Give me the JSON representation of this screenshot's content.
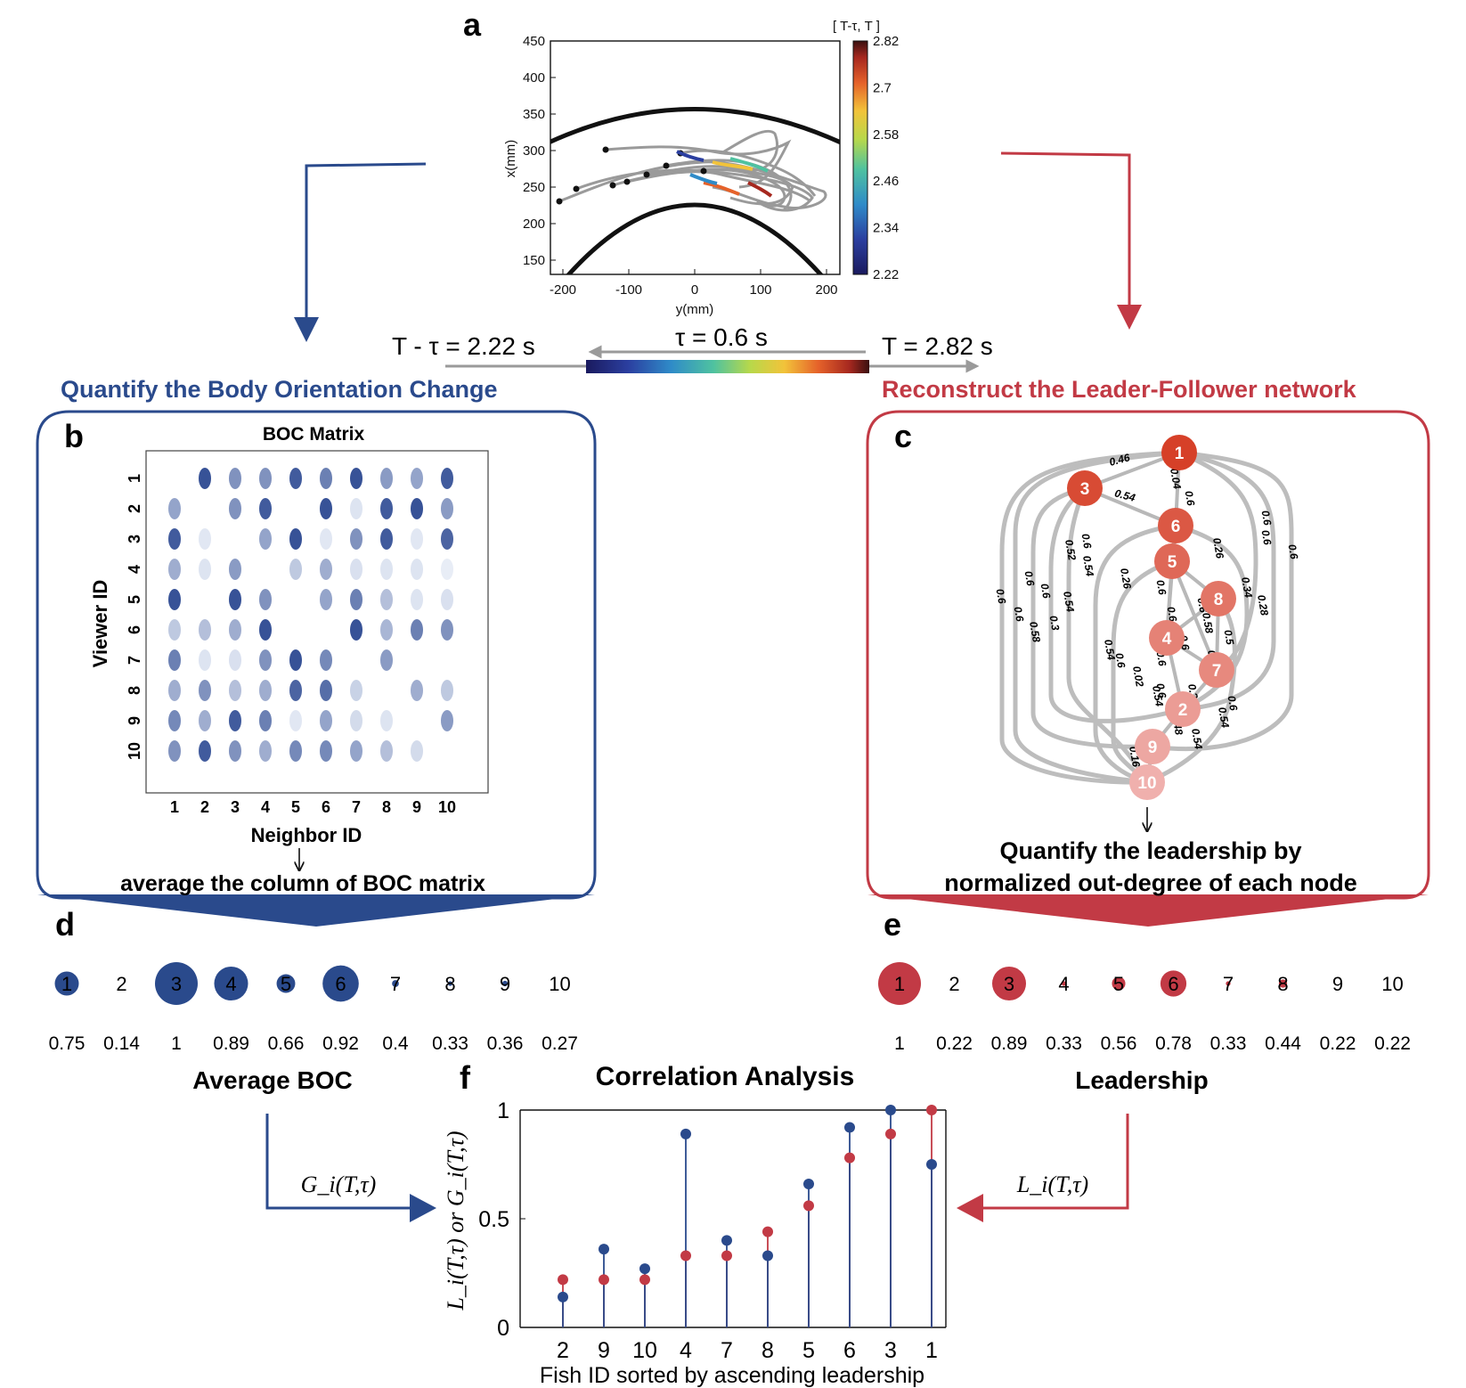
{
  "panels": {
    "a": "a",
    "b": "b",
    "c": "c",
    "d": "d",
    "e": "e",
    "f": "f"
  },
  "colors": {
    "blue": "#2a4a8c",
    "red": "#c23a45",
    "gray_track": "#9a9a9a",
    "node_dark": "#d9432b",
    "node_light": "#f0b0ad"
  },
  "panel_a": {
    "colorbar_title": "[ T-τ, T ]",
    "xlabel": "y(mm)",
    "ylabel": "x(mm)",
    "xticks": [
      "-200",
      "-100",
      "0",
      "100",
      "200"
    ],
    "yticks": [
      "450",
      "400",
      "350",
      "300",
      "250",
      "200",
      "150"
    ],
    "colorbar_ticks": [
      "2.82",
      "2.7",
      "2.58",
      "2.46",
      "2.34",
      "2.22"
    ]
  },
  "time_bar": {
    "left_label": "T - τ = 2.22 s",
    "center_label": "τ = 0.6 s",
    "right_label": "T = 2.82 s"
  },
  "headings": {
    "left": "Quantify the Body Orientation Change",
    "right": "Reconstruct the Leader-Follower network"
  },
  "panel_b": {
    "title": "BOC Matrix",
    "xlabel": "Neighbor ID",
    "ylabel": "Viewer ID",
    "ids": [
      "1",
      "2",
      "3",
      "4",
      "5",
      "6",
      "7",
      "8",
      "9",
      "10"
    ],
    "matrix": [
      [
        null,
        0.9,
        0.55,
        0.55,
        0.85,
        0.65,
        0.9,
        0.5,
        0.45,
        0.85
      ],
      [
        0.45,
        null,
        0.55,
        0.85,
        null,
        0.9,
        0.1,
        0.85,
        0.9,
        0.5
      ],
      [
        0.85,
        0.08,
        null,
        0.45,
        0.9,
        0.08,
        0.55,
        0.85,
        0.08,
        0.8
      ],
      [
        0.4,
        0.1,
        0.5,
        null,
        0.25,
        0.4,
        0.12,
        0.1,
        0.1,
        0.05
      ],
      [
        0.9,
        null,
        0.9,
        0.55,
        null,
        0.45,
        0.65,
        0.3,
        0.1,
        0.12
      ],
      [
        0.25,
        0.3,
        0.4,
        0.9,
        null,
        null,
        0.9,
        0.35,
        0.65,
        0.55
      ],
      [
        0.65,
        0.1,
        0.12,
        0.55,
        0.9,
        0.6,
        null,
        0.5,
        null,
        null
      ],
      [
        0.4,
        0.55,
        0.3,
        0.4,
        0.8,
        0.75,
        0.2,
        null,
        0.4,
        0.25
      ],
      [
        0.6,
        0.4,
        0.85,
        0.65,
        0.08,
        0.45,
        0.15,
        0.1,
        null,
        0.5
      ],
      [
        0.55,
        0.85,
        0.55,
        0.4,
        0.6,
        0.6,
        0.45,
        0.3,
        0.15,
        null
      ]
    ],
    "caption": "average the column of BOC matrix"
  },
  "panel_c": {
    "caption_line1": "Quantify the leadership by",
    "caption_line2": "normalized out-degree of each node",
    "nodes": [
      {
        "id": "1",
        "shade": 1.0
      },
      {
        "id": "3",
        "shade": 0.92
      },
      {
        "id": "6",
        "shade": 0.82
      },
      {
        "id": "5",
        "shade": 0.7
      },
      {
        "id": "8",
        "shade": 0.6
      },
      {
        "id": "4",
        "shade": 0.5
      },
      {
        "id": "7",
        "shade": 0.45
      },
      {
        "id": "2",
        "shade": 0.3
      },
      {
        "id": "9",
        "shade": 0.22
      },
      {
        "id": "10",
        "shade": 0.15
      }
    ],
    "edge_labels": [
      "0.46",
      "0.54",
      "0.04",
      "0.6",
      "0.6",
      "0.6",
      "0.6",
      "0.6",
      "0.52",
      "0.54",
      "0.26",
      "0.26",
      "0.34",
      "0.28",
      "0.6",
      "0.6",
      "0.54",
      "0.3",
      "0.58",
      "0.6",
      "0.6",
      "0.6",
      "0.54",
      "0.6",
      "0.02",
      "0.6",
      "0.24",
      "0.58",
      "0.5",
      "0.48",
      "0.54",
      "0.48",
      "0.6",
      "0.54",
      "0.16",
      "0.54",
      "0.6",
      "0.6",
      "0.6",
      "0.6"
    ]
  },
  "panel_d": {
    "title": "Average BOC",
    "ids": [
      "1",
      "2",
      "3",
      "4",
      "5",
      "6",
      "7",
      "8",
      "9",
      "10"
    ],
    "values": [
      0.75,
      0.14,
      1,
      0.89,
      0.66,
      0.92,
      0.4,
      0.33,
      0.36,
      0.27
    ],
    "value_labels": [
      "0.75",
      "0.14",
      "1",
      "0.89",
      "0.66",
      "0.92",
      "0.4",
      "0.33",
      "0.36",
      "0.27"
    ]
  },
  "panel_e": {
    "title": "Leadership",
    "ids": [
      "1",
      "2",
      "3",
      "4",
      "5",
      "6",
      "7",
      "8",
      "9",
      "10"
    ],
    "values": [
      1,
      0.22,
      0.89,
      0.33,
      0.56,
      0.78,
      0.33,
      0.44,
      0.22,
      0.22
    ],
    "value_labels": [
      "1",
      "0.22",
      "0.89",
      "0.33",
      "0.56",
      "0.78",
      "0.33",
      "0.44",
      "0.22",
      "0.22"
    ]
  },
  "arrows": {
    "left_label": "G_i(T,τ)",
    "right_label": "L_i(T,τ)"
  },
  "chart_data": {
    "type": "scatter",
    "title": "Correlation Analysis",
    "xlabel": "Fish ID sorted by ascending leadership",
    "ylabel": "L_i(T,τ) or G_i(T,τ)",
    "categories": [
      "2",
      "9",
      "10",
      "4",
      "7",
      "8",
      "5",
      "6",
      "3",
      "1"
    ],
    "yticks": [
      "0",
      "0.5",
      "1"
    ],
    "ylim": [
      0,
      1
    ],
    "series": [
      {
        "name": "L_i(T,τ)",
        "values": [
          0.22,
          0.22,
          0.22,
          0.33,
          0.33,
          0.44,
          0.56,
          0.78,
          0.89,
          1.0
        ]
      },
      {
        "name": "G_i(T,τ)",
        "values": [
          0.14,
          0.36,
          0.27,
          0.89,
          0.4,
          0.33,
          0.66,
          0.92,
          1.0,
          0.75
        ]
      }
    ]
  }
}
